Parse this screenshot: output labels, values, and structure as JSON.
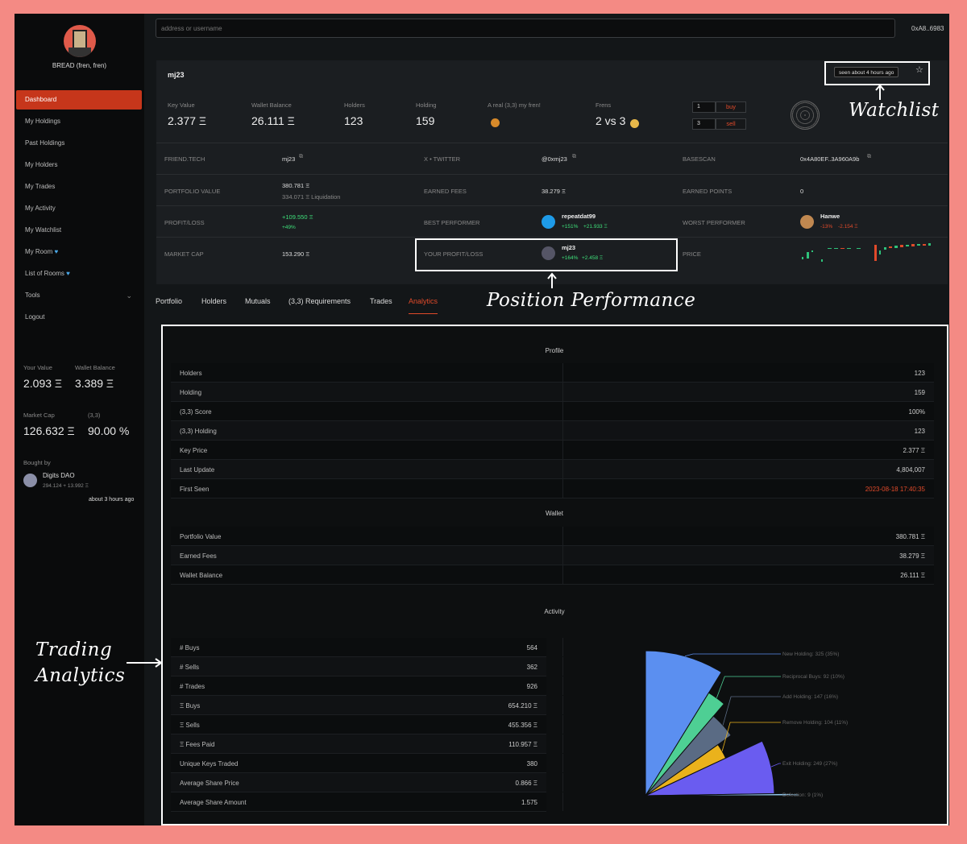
{
  "sidebar": {
    "profile_name": "BREAD (fren, fren)",
    "items": [
      {
        "label": "Dashboard"
      },
      {
        "label": "My Holdings"
      },
      {
        "label": "Past Holdings"
      },
      {
        "label": "My Holders"
      },
      {
        "label": "My Trades"
      },
      {
        "label": "My Activity"
      },
      {
        "label": "My Watchlist"
      },
      {
        "label": "My Room"
      },
      {
        "label": "List of Rooms"
      },
      {
        "label": "Tools"
      },
      {
        "label": "Logout"
      }
    ],
    "your_value_label": "Your Value",
    "your_value": "2.093 Ξ",
    "wallet_balance_label": "Wallet Balance",
    "wallet_balance": "3.389 Ξ",
    "market_cap_label": "Market Cap",
    "market_cap": "126.632 Ξ",
    "ratio_label": "(3,3)",
    "ratio_value": "90.00 %",
    "bought_by_label": "Bought by",
    "bought_by_name": "Digits DAO",
    "bought_by_sub": "294.124 + 13.992 Ξ",
    "bought_by_time": "about 3 hours ago"
  },
  "header": {
    "search_placeholder": "address or username",
    "address": "0xA8..6983"
  },
  "user": {
    "name": "mj23",
    "seen": "seen about 4 hours ago",
    "key_value_label": "Key Value",
    "key_value": "2.377 Ξ",
    "wallet_balance_label": "Wallet Balance",
    "wallet_balance": "26.111 Ξ",
    "holders_label": "Holders",
    "holders": "123",
    "holding_label": "Holding",
    "holding": "159",
    "real_fren_label": "A real (3,3) my fren!",
    "frens_label": "Frens",
    "frens": "2 vs 3",
    "buy_qty": "1",
    "buy_label": "buy",
    "sell_qty": "3",
    "sell_label": "sell"
  },
  "info": {
    "friendtech_label": "FRIEND.TECH",
    "friendtech": "mj23",
    "twitter_label": "X • TWITTER",
    "twitter": "@0xmj23",
    "basescan_label": "BASESCAN",
    "basescan": "0x4A80EF..3A960A9b",
    "portfolio_label": "PORTFOLIO VALUE",
    "portfolio": "380.781 Ξ",
    "portfolio_sub": "334.071 Ξ Liquidation",
    "earned_fees_label": "EARNED FEES",
    "earned_fees": "38.279 Ξ",
    "earned_points_label": "EARNED POINTS",
    "earned_points": "0",
    "pl_label": "PROFIT/LOSS",
    "pl": "+109.550 Ξ",
    "pl_pct": "+49%",
    "best_label": "BEST PERFORMER",
    "best_name": "repeatdat99",
    "best_pct": "+151%",
    "best_val": "+21.933 Ξ",
    "worst_label": "WORST PERFORMER",
    "worst_name": "Hanwe",
    "worst_pct": "-13%",
    "worst_val": "-2.154 Ξ",
    "mcap_label": "MARKET CAP",
    "mcap": "153.290 Ξ",
    "your_pl_label": "YOUR PROFIT/LOSS",
    "your_pl_name": "mj23",
    "your_pl_pct": "+164%",
    "your_pl_val": "+2.458 Ξ",
    "price_label": "PRICE"
  },
  "tabs": [
    "Portfolio",
    "Holders",
    "Mutuals",
    "(3,3) Requirements",
    "Trades",
    "Analytics"
  ],
  "analytics": {
    "profile_title": "Profile",
    "profile_rows": [
      {
        "label": "Holders",
        "value": "123"
      },
      {
        "label": "Holding",
        "value": "159"
      },
      {
        "label": "(3,3) Score",
        "value": "100%"
      },
      {
        "label": "(3,3) Holding",
        "value": "123"
      },
      {
        "label": "Key Price",
        "value": "2.377 Ξ"
      },
      {
        "label": "Last Update",
        "value": "4,804,007"
      },
      {
        "label": "First Seen",
        "value": "2023-08-18 17:40:35"
      }
    ],
    "wallet_title": "Wallet",
    "wallet_rows": [
      {
        "label": "Portfolio Value",
        "value": "380.781 Ξ"
      },
      {
        "label": "Earned Fees",
        "value": "38.279 Ξ"
      },
      {
        "label": "Wallet Balance",
        "value": "26.111 Ξ"
      }
    ],
    "activity_title": "Activity",
    "activity_rows": [
      {
        "label": "# Buys",
        "value": "564"
      },
      {
        "label": "# Sells",
        "value": "362"
      },
      {
        "label": "# Trades",
        "value": "926"
      },
      {
        "label": "Ξ Buys",
        "value": "654.210 Ξ"
      },
      {
        "label": "Ξ Sells",
        "value": "455.356 Ξ"
      },
      {
        "label": "Ξ Fees Paid",
        "value": "110.957 Ξ"
      },
      {
        "label": "Unique Keys Traded",
        "value": "380"
      },
      {
        "label": "Average Share Price",
        "value": "0.866 Ξ"
      },
      {
        "label": "Average Share Amount",
        "value": "1.575"
      }
    ]
  },
  "chart_data": {
    "type": "pie",
    "slices": [
      {
        "label": "New Holding: 325 (35%)",
        "value": 325,
        "color": "#5b8ff0"
      },
      {
        "label": "Reciprocal Buys: 92 (10%)",
        "value": 92,
        "color": "#4ecf94"
      },
      {
        "label": "Add Holding: 147 (16%)",
        "value": 147,
        "color": "#5a6b84"
      },
      {
        "label": "Remove Holding: 104 (11%)",
        "value": 104,
        "color": "#eab21c"
      },
      {
        "label": "Exit Holding: 249 (27%)",
        "value": 249,
        "color": "#6a5cf0"
      },
      {
        "label": "Defection: 9 (1%)",
        "value": 9,
        "color": "#8fc4e8"
      }
    ]
  },
  "annotations": {
    "watchlist": "Watchlist",
    "position": "Position Performance",
    "trading_1": "Trading",
    "trading_2": "Analytics"
  }
}
